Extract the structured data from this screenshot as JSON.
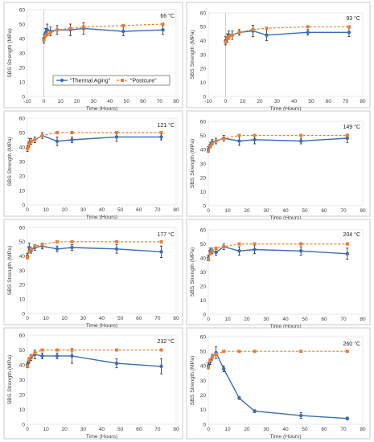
{
  "colors": {
    "thermal_aging": "#3a6db5",
    "postcure": "#ed7d31"
  },
  "axes": {
    "xlabel": "Time (Hours)",
    "ylabel": "SBS Strength (MPa)"
  },
  "legend": {
    "entries": [
      "\"Thermal Aging\"",
      "\"Postcure\""
    ],
    "placement": "bottom-center of first panel"
  },
  "chart_data": [
    {
      "type": "line",
      "temperature_label": "66 °C",
      "xlim": [
        -10,
        80
      ],
      "ylim": [
        0,
        60
      ],
      "x_ticks": [
        -10,
        0,
        10,
        20,
        30,
        40,
        50,
        60,
        70,
        80
      ],
      "y_ticks": [
        0,
        10,
        20,
        30,
        40,
        50,
        60
      ],
      "grid": false,
      "series": [
        {
          "name": "\"Thermal Aging\"",
          "style": "solid-circle",
          "x": [
            0,
            1,
            2,
            4,
            8,
            16,
            24,
            48,
            72
          ],
          "y": [
            40,
            44,
            46,
            45,
            46,
            46,
            47,
            45,
            46
          ],
          "err": [
            3,
            3,
            4,
            3,
            3,
            4,
            4,
            3,
            3
          ]
        },
        {
          "name": "\"Postcure\"",
          "style": "dashed-square",
          "x": [
            0,
            1,
            2,
            4,
            8,
            16,
            24,
            48,
            72
          ],
          "y": [
            39,
            42,
            43,
            44,
            46,
            47,
            48,
            49,
            50
          ],
          "err": [
            0,
            0,
            0,
            0,
            0,
            0,
            0,
            0,
            0
          ]
        }
      ]
    },
    {
      "type": "line",
      "temperature_label": "93 °C",
      "xlim": [
        -10,
        80
      ],
      "ylim": [
        0,
        60
      ],
      "x_ticks": [
        -10,
        0,
        10,
        20,
        30,
        40,
        50,
        60,
        70,
        80
      ],
      "y_ticks": [
        0,
        10,
        20,
        30,
        40,
        50,
        60
      ],
      "grid": false,
      "series": [
        {
          "name": "\"Thermal Aging\"",
          "style": "solid-circle",
          "x": [
            0,
            1,
            2,
            4,
            8,
            16,
            24,
            48,
            72
          ],
          "y": [
            40,
            42,
            44,
            44,
            46,
            47,
            44,
            46,
            46
          ],
          "err": [
            3,
            3,
            3,
            3,
            2,
            4,
            4,
            2,
            3
          ]
        },
        {
          "name": "\"Postcure\"",
          "style": "dashed-square",
          "x": [
            0,
            1,
            2,
            4,
            8,
            16,
            24,
            48,
            72
          ],
          "y": [
            39,
            42,
            43,
            44,
            46,
            48,
            49,
            50,
            50
          ],
          "err": [
            0,
            0,
            0,
            0,
            0,
            0,
            0,
            0,
            0
          ]
        }
      ]
    },
    {
      "type": "line",
      "temperature_label": "121 °C",
      "xlim": [
        0,
        80
      ],
      "ylim": [
        0,
        60
      ],
      "x_ticks": [
        0,
        10,
        20,
        30,
        40,
        50,
        60,
        70,
        80
      ],
      "y_ticks": [
        0,
        10,
        20,
        30,
        40,
        50,
        60
      ],
      "grid": false,
      "series": [
        {
          "name": "\"Thermal Aging\"",
          "style": "solid-circle",
          "x": [
            0,
            1,
            2,
            4,
            8,
            16,
            24,
            48,
            72
          ],
          "y": [
            39,
            43,
            44,
            45,
            48,
            44,
            45,
            47,
            47
          ],
          "err": [
            2,
            3,
            2,
            2,
            2,
            3,
            2,
            3,
            2
          ]
        },
        {
          "name": "\"Postcure\"",
          "style": "dashed-square",
          "x": [
            0,
            1,
            2,
            4,
            8,
            16,
            24,
            48,
            72
          ],
          "y": [
            39,
            42,
            44,
            45,
            48,
            50,
            50,
            50,
            50
          ],
          "err": [
            0,
            0,
            0,
            0,
            0,
            0,
            0,
            0,
            0
          ]
        }
      ]
    },
    {
      "type": "line",
      "temperature_label": "149 °C",
      "xlim": [
        0,
        80
      ],
      "ylim": [
        0,
        60
      ],
      "x_ticks": [
        0,
        10,
        20,
        30,
        40,
        50,
        60,
        70,
        80
      ],
      "y_ticks": [
        0,
        10,
        20,
        30,
        40,
        50,
        60
      ],
      "grid": false,
      "series": [
        {
          "name": "\"Thermal Aging\"",
          "style": "solid-circle",
          "x": [
            0,
            1,
            2,
            4,
            8,
            16,
            24,
            48,
            72
          ],
          "y": [
            40,
            43,
            45,
            46,
            48,
            46,
            47,
            46,
            48
          ],
          "err": [
            2,
            2,
            2,
            2,
            2,
            3,
            3,
            2,
            3
          ]
        },
        {
          "name": "\"Postcure\"",
          "style": "dashed-square",
          "x": [
            0,
            1,
            2,
            4,
            8,
            16,
            24,
            48,
            72
          ],
          "y": [
            39,
            42,
            44,
            46,
            48,
            50,
            50,
            50,
            50
          ],
          "err": [
            0,
            0,
            0,
            0,
            0,
            0,
            0,
            0,
            0
          ]
        }
      ]
    },
    {
      "type": "line",
      "temperature_label": "177 °C",
      "xlim": [
        0,
        80
      ],
      "ylim": [
        0,
        60
      ],
      "x_ticks": [
        0,
        10,
        20,
        30,
        40,
        50,
        60,
        70,
        80
      ],
      "y_ticks": [
        0,
        10,
        20,
        30,
        40,
        50,
        60
      ],
      "grid": false,
      "series": [
        {
          "name": "\"Thermal Aging\"",
          "style": "solid-circle",
          "x": [
            0,
            1,
            2,
            4,
            8,
            16,
            24,
            48,
            72
          ],
          "y": [
            40,
            46,
            44,
            46,
            47,
            45,
            46,
            45,
            43
          ],
          "err": [
            2,
            3,
            2,
            2,
            2,
            2,
            2,
            3,
            4
          ]
        },
        {
          "name": "\"Postcure\"",
          "style": "dashed-square",
          "x": [
            0,
            1,
            2,
            4,
            8,
            16,
            24,
            48,
            72
          ],
          "y": [
            39,
            43,
            45,
            47,
            48,
            50,
            50,
            50,
            50
          ],
          "err": [
            0,
            0,
            0,
            0,
            0,
            0,
            0,
            0,
            0
          ]
        }
      ]
    },
    {
      "type": "line",
      "temperature_label": "204 °C",
      "xlim": [
        0,
        80
      ],
      "ylim": [
        0,
        60
      ],
      "x_ticks": [
        0,
        10,
        20,
        30,
        40,
        50,
        60,
        70,
        80
      ],
      "y_ticks": [
        0,
        10,
        20,
        30,
        40,
        50,
        60
      ],
      "grid": false,
      "series": [
        {
          "name": "\"Thermal Aging\"",
          "style": "solid-circle",
          "x": [
            0,
            1,
            2,
            4,
            8,
            16,
            24,
            48,
            72
          ],
          "y": [
            40,
            45,
            45,
            44,
            48,
            45,
            46,
            45,
            43
          ],
          "err": [
            2,
            2,
            2,
            2,
            2,
            3,
            3,
            3,
            4
          ]
        },
        {
          "name": "\"Postcure\"",
          "style": "dashed-square",
          "x": [
            0,
            1,
            2,
            4,
            8,
            16,
            24,
            48,
            72
          ],
          "y": [
            39,
            43,
            45,
            47,
            48,
            50,
            50,
            50,
            50
          ],
          "err": [
            0,
            0,
            0,
            0,
            0,
            0,
            0,
            0,
            0
          ]
        }
      ]
    },
    {
      "type": "line",
      "temperature_label": "232 °C",
      "xlim": [
        0,
        80
      ],
      "ylim": [
        0,
        60
      ],
      "x_ticks": [
        0,
        10,
        20,
        30,
        40,
        50,
        60,
        70,
        80
      ],
      "y_ticks": [
        0,
        10,
        20,
        30,
        40,
        50,
        60
      ],
      "grid": false,
      "series": [
        {
          "name": "\"Thermal Aging\"",
          "style": "solid-circle",
          "x": [
            0,
            1,
            2,
            4,
            8,
            16,
            24,
            48,
            72
          ],
          "y": [
            40,
            43,
            45,
            47,
            46,
            46,
            46,
            41,
            39
          ],
          "err": [
            2,
            2,
            2,
            3,
            2,
            2,
            5,
            3,
            5
          ]
        },
        {
          "name": "\"Postcure\"",
          "style": "dashed-square",
          "x": [
            0,
            1,
            2,
            4,
            8,
            16,
            24,
            48,
            72
          ],
          "y": [
            39,
            44,
            46,
            48,
            50,
            50,
            50,
            50,
            50
          ],
          "err": [
            0,
            0,
            0,
            0,
            0,
            0,
            0,
            0,
            0
          ]
        }
      ]
    },
    {
      "type": "line",
      "temperature_label": "260 °C",
      "xlim": [
        0,
        80
      ],
      "ylim": [
        0,
        60
      ],
      "x_ticks": [
        0,
        10,
        20,
        30,
        40,
        50,
        60,
        70,
        80
      ],
      "y_ticks": [
        0,
        10,
        20,
        30,
        40,
        50,
        60
      ],
      "grid": false,
      "series": [
        {
          "name": "\"Thermal Aging\"",
          "style": "solid-circle",
          "x": [
            0,
            1,
            2,
            4,
            8,
            16,
            24,
            48,
            72
          ],
          "y": [
            40,
            43,
            46,
            49,
            38,
            18,
            9,
            6,
            4
          ],
          "err": [
            2,
            2,
            2,
            4,
            2,
            1,
            1,
            2,
            1
          ]
        },
        {
          "name": "\"Postcure\"",
          "style": "dashed-square",
          "x": [
            0,
            1,
            2,
            4,
            8,
            16,
            24,
            48,
            72
          ],
          "y": [
            39,
            44,
            46,
            48,
            50,
            50,
            50,
            50,
            50
          ],
          "err": [
            0,
            0,
            0,
            0,
            0,
            0,
            0,
            0,
            0
          ]
        }
      ]
    }
  ]
}
